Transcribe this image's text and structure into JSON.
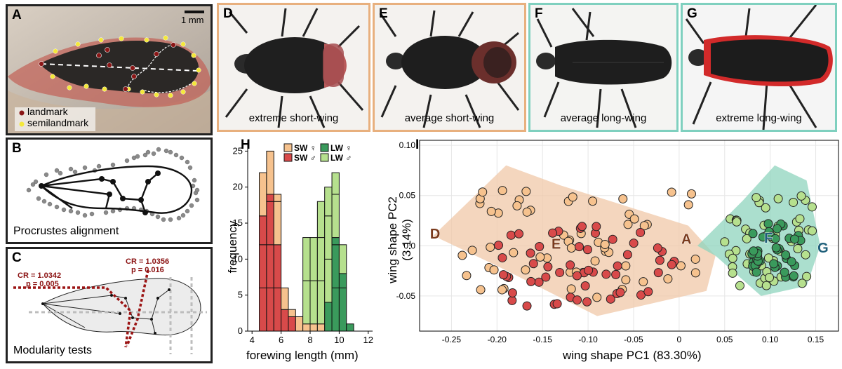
{
  "panels": {
    "A": {
      "label": "A",
      "scale": "1 mm",
      "legend_landmark": "landmark",
      "legend_semilandmark": "semilandmark"
    },
    "B": {
      "label": "B",
      "caption": "Procrustes alignment"
    },
    "C": {
      "label": "C",
      "caption": "Modularity tests",
      "cr1": "CR = 1.0342",
      "p1": "p = 0.005",
      "cr2": "CR = 1.0356",
      "p2": "p = 0.016"
    },
    "D": {
      "label": "D",
      "caption": "extreme short-wing"
    },
    "E": {
      "label": "E",
      "caption": "average short-wing"
    },
    "F": {
      "label": "F",
      "caption": "average long-wing"
    },
    "G": {
      "label": "G",
      "caption": "extreme long-wing"
    },
    "H": {
      "label": "H"
    },
    "I": {
      "label": "I"
    }
  },
  "colors": {
    "short_wing_border": "#e8b07e",
    "long_wing_border": "#7fd0bf",
    "sw_female": "#f6c28e",
    "sw_male": "#d84a4a",
    "lw_female": "#3a9a5c",
    "lw_male": "#b6e08e",
    "sw_hull": "#f0c8a8",
    "lw_hull": "#8fd4bd"
  },
  "chart_data": [
    {
      "type": "bar",
      "stacked": true,
      "xlabel": "forewing length (mm)",
      "ylabel": "frequency",
      "x_ticks": [
        "4",
        "6",
        "8",
        "10",
        "12"
      ],
      "y_ticks": [
        "0",
        "5",
        "10",
        "15",
        "20",
        "25"
      ],
      "xlim": [
        3.7,
        12.3
      ],
      "ylim": [
        0,
        26.5
      ],
      "bin_width": 0.5,
      "bin_starts": [
        4.5,
        5.0,
        5.5,
        6.0,
        6.5,
        7.0,
        7.5,
        8.0,
        8.5,
        9.0,
        9.5,
        10.0,
        10.5
      ],
      "legend": [
        "SW ♀",
        "LW ♀",
        "SW ♂",
        "LW ♂"
      ],
      "series": [
        {
          "name": "SW ♂",
          "values": [
            16,
            19,
            12,
            3,
            2,
            0,
            0,
            0,
            0,
            0,
            0,
            0,
            0
          ]
        },
        {
          "name": "SW ♀",
          "values": [
            6,
            6,
            7,
            3,
            1,
            2,
            1,
            1,
            1,
            0,
            0,
            0,
            0
          ]
        },
        {
          "name": "LW ♂",
          "values": [
            0,
            0,
            0,
            0,
            0,
            0,
            0,
            0,
            0,
            4,
            13,
            8,
            1
          ]
        },
        {
          "name": "LW ♀",
          "values": [
            0,
            0,
            0,
            0,
            0,
            0,
            12,
            12,
            17,
            16,
            9,
            4,
            0
          ]
        }
      ]
    },
    {
      "type": "scatter",
      "xlabel": "wing shape PC1 (83.30%)",
      "ylabel": "wing shape PC2 (3.14%)",
      "x_ticks": [
        "-0.25",
        "-0.20",
        "-0.15",
        "-0.10",
        "-0.05",
        "0",
        "0.05",
        "0.10",
        "0.15"
      ],
      "y_ticks": [
        "-0.05",
        "0.0",
        "0.05",
        "0.10"
      ],
      "xlim": [
        -0.285,
        0.175
      ],
      "ylim": [
        -0.085,
        0.105
      ],
      "grid": true,
      "markers": [
        "D",
        "E",
        "F",
        "G",
        "A"
      ],
      "marker_positions": [
        [
          -0.268,
          0.012
        ],
        [
          -0.135,
          0.002
        ],
        [
          0.098,
          0.008
        ],
        [
          0.158,
          -0.002
        ],
        [
          0.008,
          0.007
        ]
      ]
    }
  ]
}
